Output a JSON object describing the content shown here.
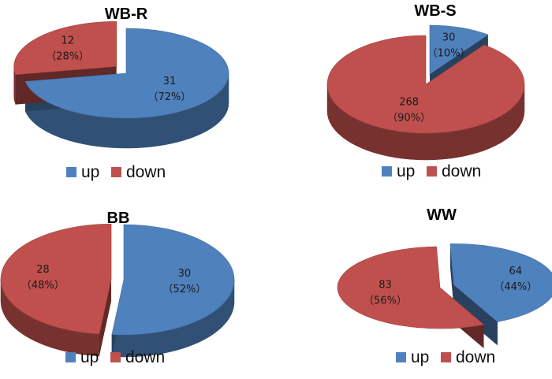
{
  "chart_data": [
    {
      "type": "pie",
      "title": "WB-R",
      "slices": [
        {
          "name": "up",
          "value": 31,
          "pct_label": "（72%）",
          "color": "#4f81bd",
          "exploded": false
        },
        {
          "name": "down",
          "value": 12,
          "pct_label": "（28%）",
          "color": "#c0504d",
          "exploded": true
        }
      ],
      "legend": [
        "up",
        "down"
      ],
      "legend_position": "bottom"
    },
    {
      "type": "pie",
      "title": "WB-S",
      "slices": [
        {
          "name": "up",
          "value": 30,
          "pct_label": "（10%）",
          "color": "#4f81bd",
          "exploded": true
        },
        {
          "name": "down",
          "value": 268,
          "pct_label": "（90%）",
          "color": "#c0504d",
          "exploded": false
        }
      ],
      "legend": [
        "up",
        "down"
      ],
      "legend_position": "bottom"
    },
    {
      "type": "pie",
      "title": "BB",
      "slices": [
        {
          "name": "up",
          "value": 30,
          "pct_label": "（52%）",
          "color": "#4f81bd",
          "exploded": false
        },
        {
          "name": "down",
          "value": 28,
          "pct_label": "（48%）",
          "color": "#c0504d",
          "exploded": true
        }
      ],
      "legend": [
        "up",
        "down"
      ],
      "legend_position": "bottom"
    },
    {
      "type": "pie",
      "title": "WW",
      "slices": [
        {
          "name": "up",
          "value": 64,
          "pct_label": "（44%）",
          "color": "#4f81bd",
          "exploded": true
        },
        {
          "name": "down",
          "value": 83,
          "pct_label": "（56%）",
          "color": "#c0504d",
          "exploded": false
        }
      ],
      "legend": [
        "up",
        "down"
      ],
      "legend_position": "bottom"
    }
  ]
}
